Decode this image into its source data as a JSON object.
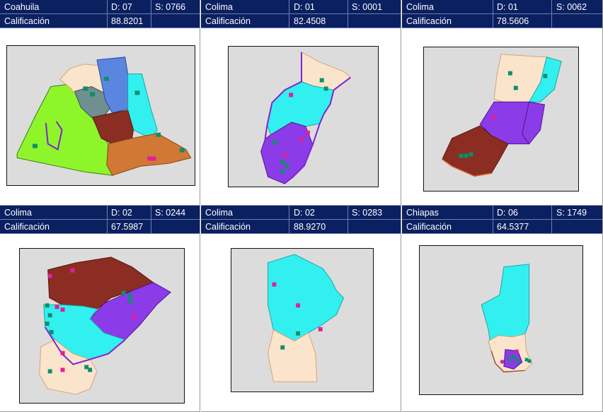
{
  "cards": [
    {
      "state": "Coahuila",
      "district": "D: 07",
      "section": "S: 0766",
      "score_label": "Calificación",
      "score": "88.8201"
    },
    {
      "state": "Colima",
      "district": "D: 01",
      "section": "S: 0001",
      "score_label": "Calificación",
      "score": "82.4508"
    },
    {
      "state": "Colima",
      "district": "D: 01",
      "section": "S: 0062",
      "score_label": "Calificación",
      "score": "78.5606"
    },
    {
      "state": "Colima",
      "district": "D: 02",
      "section": "S: 0244",
      "score_label": "Calificación",
      "score": "67.5987"
    },
    {
      "state": "Colima",
      "district": "D: 02",
      "section": "S: 0283",
      "score_label": "Calificación",
      "score": "88.9270"
    },
    {
      "state": "Chiapas",
      "district": "D: 06",
      "section": "S: 1749",
      "score_label": "Calificación",
      "score": "64.5377"
    }
  ],
  "colors": {
    "header_bg": "#0b2060",
    "map_bg": "#dcdcdc",
    "zone_green": "#8ef52a",
    "zone_beige": "#fbe4cc",
    "zone_blue": "#5a86e0",
    "zone_gray": "#6f8f90",
    "zone_brown": "#8b2d22",
    "zone_orange": "#d27836",
    "zone_cyan": "#33f0f0",
    "zone_purple": "#8b3ce8",
    "marker_school": "#0c8f6a",
    "marker_c": "#e0209a"
  }
}
